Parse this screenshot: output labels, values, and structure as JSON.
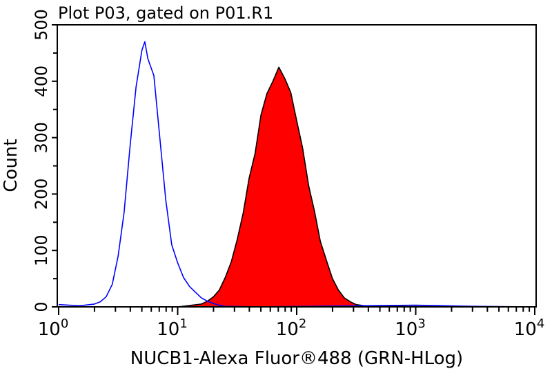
{
  "chart_data": {
    "type": "area",
    "title": "Plot P03, gated on P01.R1",
    "xlabel": "NUCB1-Alexa Fluor®488 (GRN-HLog)",
    "ylabel": "Count",
    "x_scale": "log",
    "xlim": [
      1,
      10000
    ],
    "ylim": [
      0,
      500
    ],
    "x_ticks": [
      {
        "base": "10",
        "exp": "0",
        "value": 1
      },
      {
        "base": "10",
        "exp": "1",
        "value": 10
      },
      {
        "base": "10",
        "exp": "2",
        "value": 100
      },
      {
        "base": "10",
        "exp": "3",
        "value": 1000
      },
      {
        "base": "10",
        "exp": "4",
        "value": 10000
      }
    ],
    "y_ticks": [
      "0",
      "100",
      "200",
      "300",
      "400",
      "500"
    ],
    "y_tick_values": [
      0,
      100,
      200,
      300,
      400,
      500
    ],
    "grid": false,
    "series": [
      {
        "style": "outline",
        "color": "#0000ff",
        "x": [
          1,
          1.5,
          2.0,
          2.24,
          2.51,
          2.82,
          3.16,
          3.55,
          3.98,
          4.47,
          5.01,
          5.3,
          5.62,
          6.31,
          7.08,
          7.94,
          8.91,
          10,
          11.2,
          12.6,
          14.1,
          15.8,
          17.8,
          20,
          22.4,
          25.1,
          50,
          1000,
          3000,
          10000
        ],
        "y": [
          4,
          2,
          5,
          9,
          18,
          40,
          90,
          168,
          285,
          390,
          455,
          470,
          440,
          410,
          300,
          190,
          110,
          78,
          52,
          36,
          26,
          16,
          10,
          6,
          3,
          1,
          0,
          3,
          1,
          0
        ]
      },
      {
        "style": "filled",
        "color": "#ff0000",
        "stroke": "#000000",
        "x": [
          1,
          10,
          15.8,
          17.8,
          20,
          22.4,
          25.1,
          28.2,
          31.6,
          35.5,
          39.8,
          44.7,
          50.1,
          56.2,
          63.1,
          70.8,
          79.4,
          89.1,
          100,
          112,
          126,
          141,
          158,
          178,
          200,
          224,
          251,
          282,
          316,
          398,
          10000
        ],
        "y": [
          0,
          0,
          5,
          10,
          18,
          30,
          52,
          80,
          119,
          166,
          228,
          272,
          340,
          378,
          400,
          425,
          405,
          380,
          330,
          282,
          215,
          170,
          116,
          82,
          50,
          30,
          16,
          9,
          4,
          1,
          0
        ]
      }
    ]
  }
}
